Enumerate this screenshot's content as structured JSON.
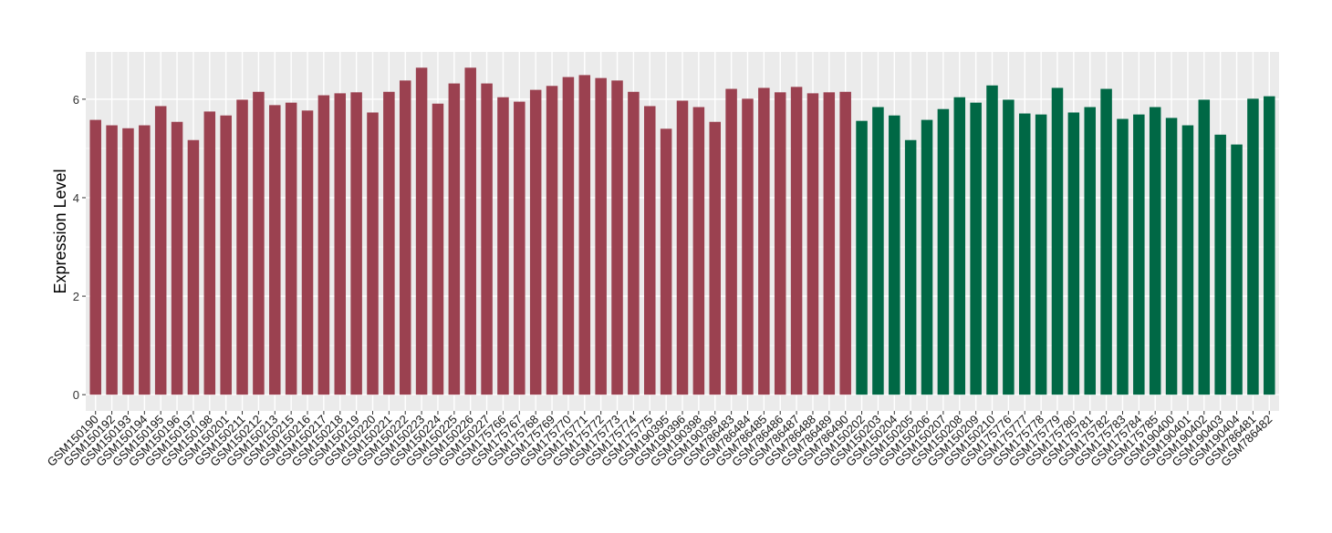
{
  "chart_data": {
    "type": "bar",
    "title": "",
    "xlabel": "",
    "ylabel": "Expression Level",
    "ylim": [
      -0.33,
      6.96
    ],
    "yticks": [
      0,
      2,
      4,
      6
    ],
    "grid": true,
    "legend": "none",
    "colors": {
      "group1": "#9b4150",
      "group2": "#006845",
      "panel": "#ebebeb",
      "grid": "#ffffff"
    },
    "categories": [
      "GSM150190",
      "GSM150192",
      "GSM150193",
      "GSM150194",
      "GSM150195",
      "GSM150196",
      "GSM150197",
      "GSM150198",
      "GSM150201",
      "GSM150211",
      "GSM150212",
      "GSM150213",
      "GSM150215",
      "GSM150216",
      "GSM150217",
      "GSM150218",
      "GSM150219",
      "GSM150220",
      "GSM150221",
      "GSM150222",
      "GSM150223",
      "GSM150224",
      "GSM150225",
      "GSM150226",
      "GSM150227",
      "GSM175766",
      "GSM175767",
      "GSM175768",
      "GSM175769",
      "GSM175770",
      "GSM175771",
      "GSM175772",
      "GSM175773",
      "GSM175774",
      "GSM175775",
      "GSM190395",
      "GSM190396",
      "GSM190398",
      "GSM190399",
      "GSM786483",
      "GSM786484",
      "GSM786485",
      "GSM786486",
      "GSM786487",
      "GSM786488",
      "GSM786489",
      "GSM786490",
      "GSM150202",
      "GSM150203",
      "GSM150204",
      "GSM150205",
      "GSM150206",
      "GSM150207",
      "GSM150208",
      "GSM150209",
      "GSM150210",
      "GSM175776",
      "GSM175777",
      "GSM175778",
      "GSM175779",
      "GSM175780",
      "GSM175781",
      "GSM175782",
      "GSM175783",
      "GSM175784",
      "GSM175785",
      "GSM190400",
      "GSM190401",
      "GSM190402",
      "GSM190403",
      "GSM190404",
      "GSM786481",
      "GSM786482"
    ],
    "values": [
      5.58,
      5.47,
      5.41,
      5.47,
      5.86,
      5.54,
      5.17,
      5.75,
      5.67,
      5.99,
      6.15,
      5.88,
      5.93,
      5.77,
      6.08,
      6.12,
      6.14,
      5.73,
      6.15,
      6.38,
      6.64,
      5.91,
      6.32,
      6.64,
      6.32,
      6.04,
      5.95,
      6.19,
      6.27,
      6.45,
      6.49,
      6.43,
      6.38,
      6.15,
      5.86,
      5.4,
      5.97,
      5.84,
      5.54,
      6.21,
      6.01,
      6.23,
      6.14,
      6.25,
      6.12,
      6.14,
      6.15,
      5.56,
      5.84,
      5.67,
      5.17,
      5.58,
      5.8,
      6.04,
      5.93,
      6.28,
      5.99,
      5.71,
      5.69,
      6.23,
      5.73,
      5.84,
      6.21,
      5.6,
      5.69,
      5.84,
      5.62,
      5.47,
      5.99,
      5.28,
      5.08,
      6.01,
      6.06
    ],
    "groups": [
      1,
      1,
      1,
      1,
      1,
      1,
      1,
      1,
      1,
      1,
      1,
      1,
      1,
      1,
      1,
      1,
      1,
      1,
      1,
      1,
      1,
      1,
      1,
      1,
      1,
      1,
      1,
      1,
      1,
      1,
      1,
      1,
      1,
      1,
      1,
      1,
      1,
      1,
      1,
      1,
      1,
      1,
      1,
      1,
      1,
      1,
      1,
      2,
      2,
      2,
      2,
      2,
      2,
      2,
      2,
      2,
      2,
      2,
      2,
      2,
      2,
      2,
      2,
      2,
      2,
      2,
      2,
      2,
      2,
      2,
      2,
      2,
      2
    ]
  }
}
